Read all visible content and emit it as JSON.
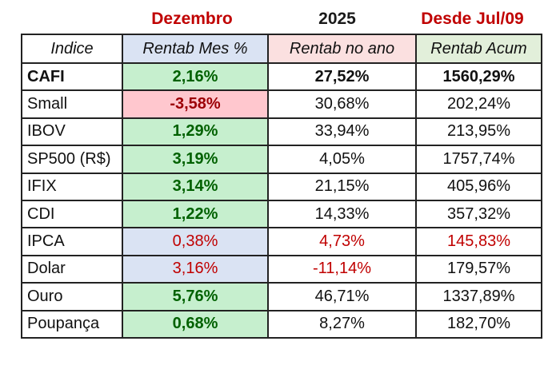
{
  "top_labels": [
    "Dezembro",
    "2025",
    "Desde Jul/09"
  ],
  "table": {
    "header": [
      "Indice",
      "Rentab Mes %",
      "Rentab no ano",
      "Rentab Acum"
    ],
    "rows": [
      [
        "CAFI",
        "2,16%",
        "27,52%",
        "1560,29%"
      ],
      [
        "Small",
        "-3,58%",
        "30,68%",
        "202,24%"
      ],
      [
        "IBOV",
        "1,29%",
        "33,94%",
        "213,95%"
      ],
      [
        "SP500 (R$)",
        "3,19%",
        "4,05%",
        "1757,74%"
      ],
      [
        "IFIX",
        "3,14%",
        "21,15%",
        "405,96%"
      ],
      [
        "CDI",
        "1,22%",
        "14,33%",
        "357,32%"
      ],
      [
        "IPCA",
        "0,38%",
        "4,73%",
        "145,83%"
      ],
      [
        "Dolar",
        "3,16%",
        "-11,14%",
        "179,57%"
      ],
      [
        "Ouro",
        "5,76%",
        "46,71%",
        "1337,89%"
      ],
      [
        "Poupança",
        "0,68%",
        "8,27%",
        "182,70%"
      ]
    ]
  }
}
